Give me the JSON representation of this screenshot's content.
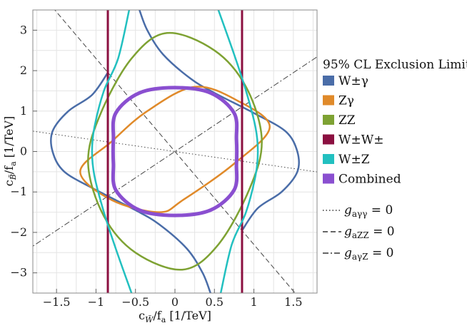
{
  "chart_data": {
    "type": "line",
    "xlabel": "c",
    "xlabel_sub": "W̃",
    "xlabel_rest": "/f",
    "xlabel_sub2": "a",
    "xlabel_unit": " [1/TeV]",
    "ylabel": "c",
    "ylabel_sub": "B̃",
    "ylabel_rest": "/f",
    "ylabel_sub2": "a",
    "ylabel_unit": " [1/TeV]",
    "xlim": [
      -1.8,
      1.8
    ],
    "ylim": [
      -3.5,
      3.5
    ],
    "xticks": [
      -1.5,
      -1,
      -0.5,
      0,
      0.5,
      1,
      1.5
    ],
    "xtick_labels": [
      "−1.5",
      "−1",
      "−0.5",
      "0",
      "0.5",
      "1",
      "1.5"
    ],
    "yticks": [
      -3,
      -2,
      -1,
      0,
      1,
      2,
      3
    ],
    "ytick_labels": [
      "−3",
      "−2",
      "−1",
      "0",
      "1",
      "2",
      "3"
    ],
    "grid": true,
    "legend_title": "95% CL Exclusion Limits:",
    "legend_position": "right",
    "series": [
      {
        "name": "W±γ",
        "color": "#4a6da8",
        "width": 2.5,
        "shape": "wgamma",
        "points": [
          [
            -0.85,
            1.95
          ],
          [
            -1.05,
            1.4
          ],
          [
            -1.35,
            1.0
          ],
          [
            -1.55,
            0.5
          ],
          [
            -1.55,
            0.0
          ],
          [
            -1.4,
            -0.5
          ],
          [
            -1.0,
            -0.95
          ],
          [
            -0.5,
            -1.45
          ],
          [
            -0.2,
            -1.8
          ],
          [
            0.15,
            -2.4
          ],
          [
            0.35,
            -3.0
          ],
          [
            0.45,
            -3.5
          ]
        ]
      },
      {
        "name": "Zγ",
        "color": "#e08a2a",
        "width": 2.5,
        "shape": "zgamma",
        "points": [
          [
            0.25,
            1.6
          ],
          [
            0.8,
            1.25
          ],
          [
            1.2,
            0.6
          ],
          [
            0.75,
            -0.3
          ],
          [
            0.1,
            -1.2
          ],
          [
            -0.2,
            -1.5
          ],
          [
            -0.8,
            -1.2
          ],
          [
            -1.2,
            -0.5
          ],
          [
            -0.8,
            0.25
          ],
          [
            -0.35,
            1.0
          ]
        ]
      },
      {
        "name": "ZZ",
        "color": "#7ea233",
        "width": 2.5,
        "shape": "zz",
        "points": [
          [
            -0.1,
            2.93
          ],
          [
            0.5,
            2.5
          ],
          [
            0.9,
            1.6
          ],
          [
            1.1,
            0.3
          ],
          [
            0.95,
            -0.9
          ],
          [
            0.55,
            -2.3
          ],
          [
            0.1,
            -2.92
          ],
          [
            -0.5,
            -2.5
          ],
          [
            -0.9,
            -1.6
          ],
          [
            -1.1,
            -0.3
          ],
          [
            -0.95,
            0.9
          ],
          [
            -0.55,
            2.3
          ]
        ]
      },
      {
        "name": "W±W±",
        "color": "#8b1040",
        "width": 3,
        "shape": "vlines",
        "x": [
          -0.85,
          0.85
        ]
      },
      {
        "name": "W±Z",
        "color": "#22c0c0",
        "width": 2.5,
        "shape": "wz",
        "points": [
          [
            0.55,
            3.5
          ],
          [
            0.75,
            2.4
          ],
          [
            0.9,
            1.5
          ],
          [
            1.02,
            0.6
          ],
          [
            1.05,
            0.0
          ],
          [
            1.02,
            -0.6
          ],
          [
            0.9,
            -1.5
          ],
          [
            0.72,
            -2.3
          ],
          [
            0.58,
            -3.5
          ]
        ]
      },
      {
        "name": "Combined",
        "color": "#8a4fd0",
        "width": 5,
        "shape": "combined",
        "points": [
          [
            0.0,
            1.58
          ],
          [
            0.45,
            1.45
          ],
          [
            0.75,
            0.95
          ],
          [
            0.78,
            0.3
          ],
          [
            0.78,
            -0.3
          ],
          [
            0.75,
            -0.95
          ],
          [
            0.45,
            -1.45
          ],
          [
            0.0,
            -1.58
          ],
          [
            -0.45,
            -1.45
          ],
          [
            -0.75,
            -0.95
          ],
          [
            -0.78,
            -0.3
          ],
          [
            -0.78,
            0.3
          ],
          [
            -0.75,
            0.95
          ],
          [
            -0.45,
            1.45
          ]
        ]
      }
    ],
    "reference_lines": [
      {
        "name": "g",
        "sub": "aγγ",
        "suffix": " = 0",
        "style": "dotted",
        "slope": -0.28
      },
      {
        "name": "g",
        "sub": "aZZ",
        "suffix": " = 0",
        "style": "dashed",
        "slope": -2.3
      },
      {
        "name": "g",
        "sub": "aγZ",
        "suffix": " = 0",
        "style": "dashdot",
        "slope": 1.3
      }
    ]
  }
}
